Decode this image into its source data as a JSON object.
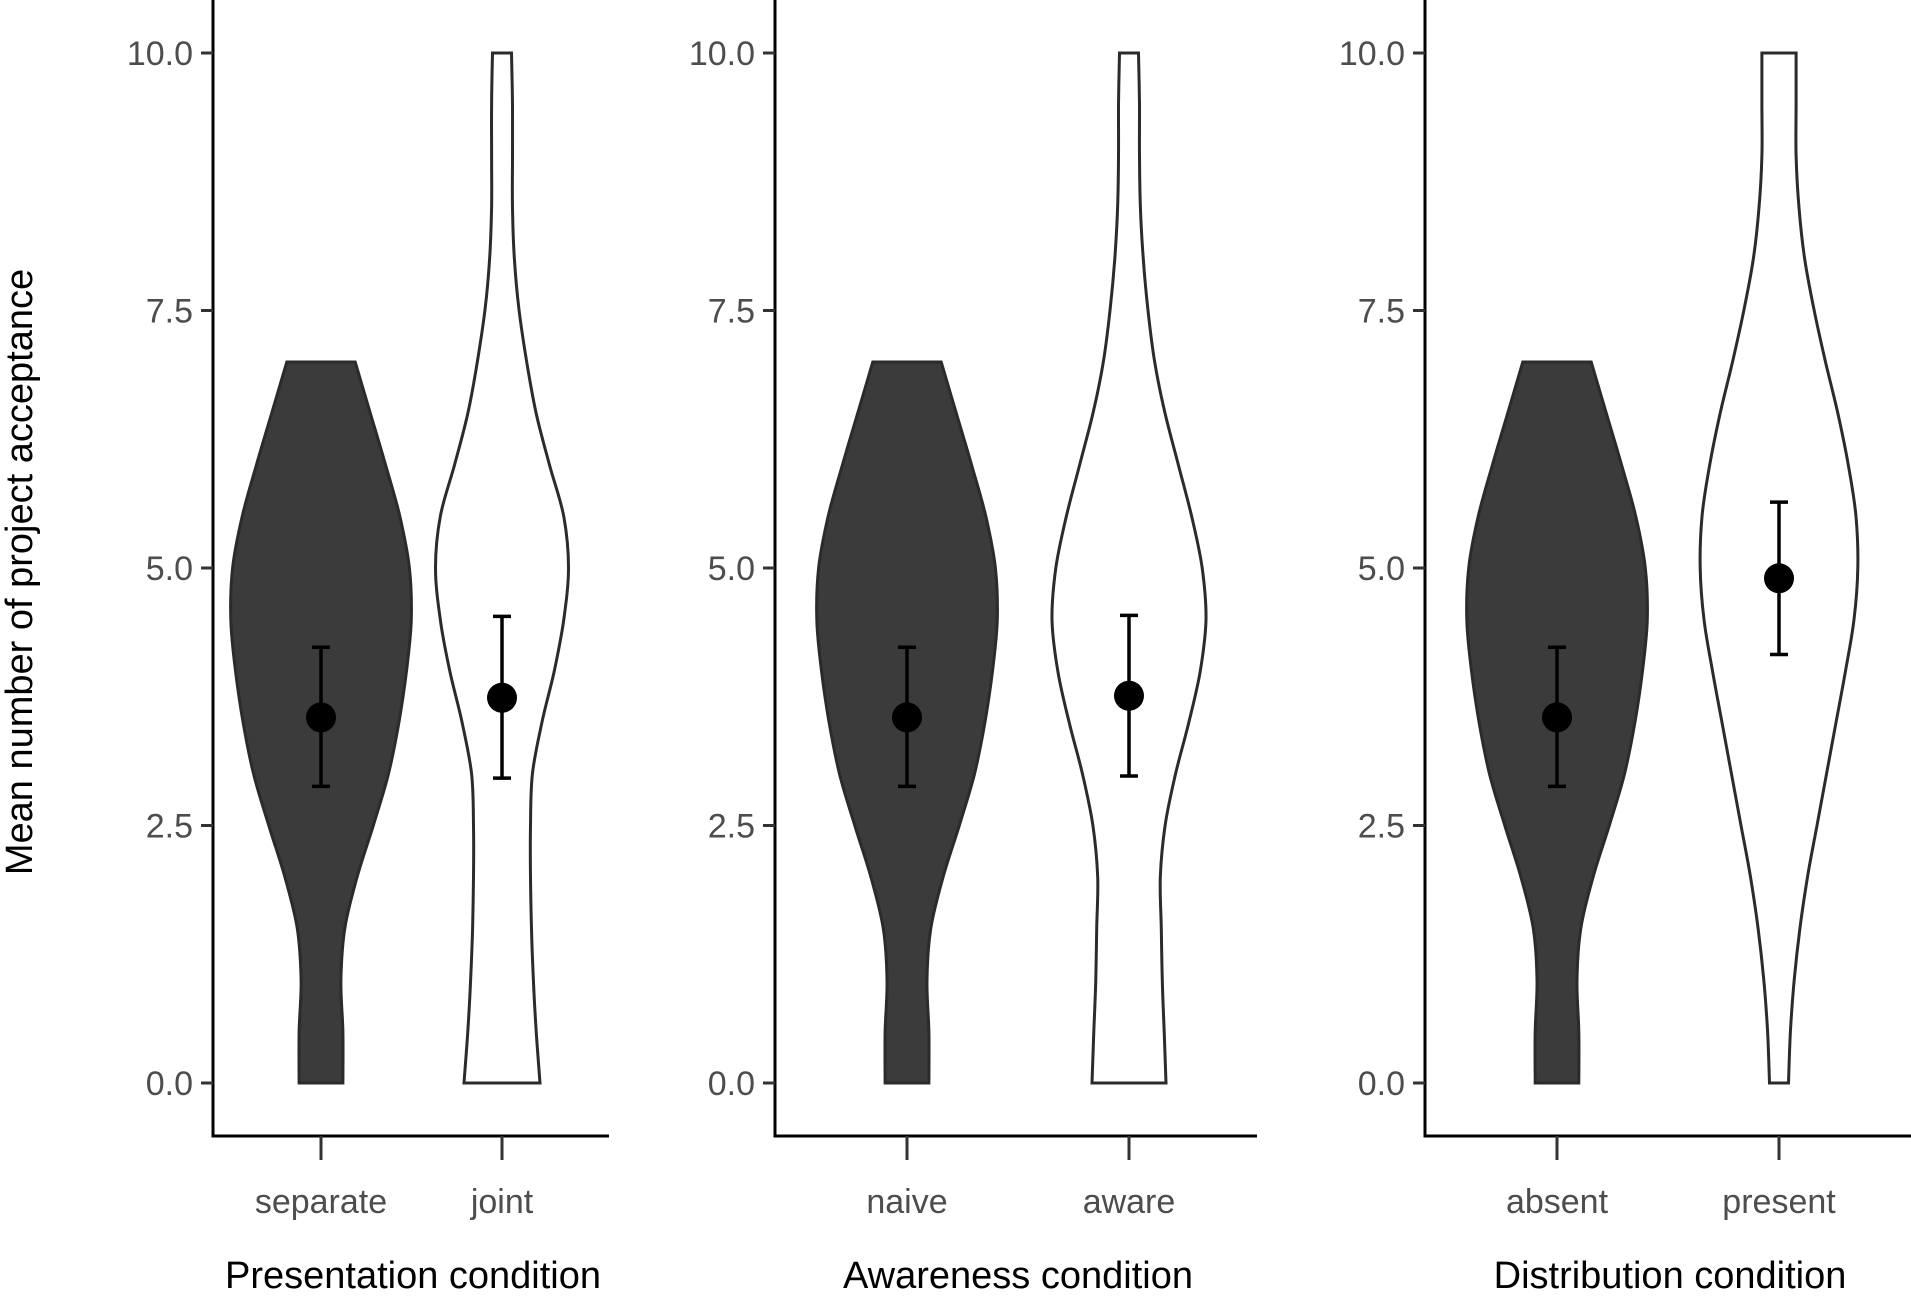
{
  "ylabel": "Mean number of project acceptance",
  "colors": {
    "filled": "#3b3b3b",
    "open": "#ffffff",
    "outline": "#2b2b2b",
    "point": "#000000"
  },
  "chart_data": [
    {
      "type": "violin",
      "xlabel": "Presentation condition",
      "ylim": [
        0,
        10
      ],
      "yticks": [
        "0.0",
        "2.5",
        "5.0",
        "7.5",
        "10.0"
      ],
      "ytick_values": [
        0,
        2.5,
        5,
        7.5,
        10
      ],
      "categories": [
        "separate",
        "joint"
      ],
      "groups": [
        {
          "category": "separate",
          "fill": "dark",
          "mean": 3.55,
          "ci_low": 2.88,
          "ci_high": 4.23,
          "density": [
            [
              0,
              0.23
            ],
            [
              0.5,
              0.23
            ],
            [
              1.0,
              0.21
            ],
            [
              1.5,
              0.25
            ],
            [
              2.0,
              0.38
            ],
            [
              2.5,
              0.55
            ],
            [
              3.0,
              0.71
            ],
            [
              3.5,
              0.82
            ],
            [
              4.0,
              0.9
            ],
            [
              4.5,
              0.95
            ],
            [
              5.0,
              0.93
            ],
            [
              5.5,
              0.83
            ],
            [
              6.0,
              0.68
            ],
            [
              6.5,
              0.52
            ],
            [
              7.0,
              0.36
            ]
          ]
        },
        {
          "category": "joint",
          "fill": "open",
          "mean": 3.74,
          "ci_low": 2.96,
          "ci_high": 4.53,
          "density": [
            [
              0,
              0.4
            ],
            [
              0.5,
              0.36
            ],
            [
              1.0,
              0.33
            ],
            [
              1.5,
              0.31
            ],
            [
              2.0,
              0.3
            ],
            [
              2.5,
              0.3
            ],
            [
              3.0,
              0.32
            ],
            [
              3.5,
              0.42
            ],
            [
              4.0,
              0.55
            ],
            [
              4.5,
              0.65
            ],
            [
              5.0,
              0.7
            ],
            [
              5.5,
              0.65
            ],
            [
              6.0,
              0.5
            ],
            [
              6.5,
              0.36
            ],
            [
              7.0,
              0.26
            ],
            [
              7.5,
              0.18
            ],
            [
              8.0,
              0.13
            ],
            [
              8.5,
              0.11
            ],
            [
              9.0,
              0.11
            ],
            [
              9.5,
              0.11
            ],
            [
              10.0,
              0.1
            ]
          ]
        }
      ]
    },
    {
      "type": "violin",
      "xlabel": "Awareness condition",
      "ylim": [
        0,
        10
      ],
      "yticks": [
        "0.0",
        "2.5",
        "5.0",
        "7.5",
        "10.0"
      ],
      "ytick_values": [
        0,
        2.5,
        5,
        7.5,
        10
      ],
      "categories": [
        "naive",
        "aware"
      ],
      "groups": [
        {
          "category": "naive",
          "fill": "dark",
          "mean": 3.55,
          "ci_low": 2.88,
          "ci_high": 4.23,
          "density": [
            [
              0,
              0.23
            ],
            [
              0.5,
              0.23
            ],
            [
              1.0,
              0.21
            ],
            [
              1.5,
              0.25
            ],
            [
              2.0,
              0.38
            ],
            [
              2.5,
              0.55
            ],
            [
              3.0,
              0.71
            ],
            [
              3.5,
              0.82
            ],
            [
              4.0,
              0.9
            ],
            [
              4.5,
              0.95
            ],
            [
              5.0,
              0.93
            ],
            [
              5.5,
              0.83
            ],
            [
              6.0,
              0.68
            ],
            [
              6.5,
              0.52
            ],
            [
              7.0,
              0.36
            ]
          ]
        },
        {
          "category": "aware",
          "fill": "open",
          "mean": 3.76,
          "ci_low": 2.98,
          "ci_high": 4.54,
          "density": [
            [
              0,
              0.39
            ],
            [
              0.5,
              0.37
            ],
            [
              1.0,
              0.35
            ],
            [
              1.5,
              0.34
            ],
            [
              2.0,
              0.33
            ],
            [
              2.5,
              0.38
            ],
            [
              3.0,
              0.49
            ],
            [
              3.5,
              0.63
            ],
            [
              4.0,
              0.75
            ],
            [
              4.5,
              0.81
            ],
            [
              5.0,
              0.77
            ],
            [
              5.5,
              0.66
            ],
            [
              6.0,
              0.52
            ],
            [
              6.5,
              0.38
            ],
            [
              7.0,
              0.27
            ],
            [
              7.5,
              0.2
            ],
            [
              8.0,
              0.15
            ],
            [
              8.5,
              0.12
            ],
            [
              9.0,
              0.11
            ],
            [
              9.5,
              0.11
            ],
            [
              10.0,
              0.1
            ]
          ]
        }
      ]
    },
    {
      "type": "violin",
      "xlabel": "Distribution condition",
      "ylim": [
        0,
        10
      ],
      "yticks": [
        "0.0",
        "2.5",
        "5.0",
        "7.5",
        "10.0"
      ],
      "ytick_values": [
        0,
        2.5,
        5,
        7.5,
        10
      ],
      "categories": [
        "absent",
        "present"
      ],
      "groups": [
        {
          "category": "absent",
          "fill": "dark",
          "mean": 3.55,
          "ci_low": 2.88,
          "ci_high": 4.23,
          "density": [
            [
              0,
              0.23
            ],
            [
              0.5,
              0.23
            ],
            [
              1.0,
              0.21
            ],
            [
              1.5,
              0.25
            ],
            [
              2.0,
              0.38
            ],
            [
              2.5,
              0.55
            ],
            [
              3.0,
              0.71
            ],
            [
              3.5,
              0.82
            ],
            [
              4.0,
              0.9
            ],
            [
              4.5,
              0.95
            ],
            [
              5.0,
              0.93
            ],
            [
              5.5,
              0.83
            ],
            [
              6.0,
              0.68
            ],
            [
              6.5,
              0.52
            ],
            [
              7.0,
              0.36
            ]
          ]
        },
        {
          "category": "present",
          "fill": "open",
          "mean": 4.9,
          "ci_low": 4.16,
          "ci_high": 5.64,
          "density": [
            [
              0,
              0.1
            ],
            [
              0.5,
              0.12
            ],
            [
              1.0,
              0.16
            ],
            [
              1.5,
              0.22
            ],
            [
              2.0,
              0.3
            ],
            [
              2.5,
              0.4
            ],
            [
              3.0,
              0.5
            ],
            [
              3.5,
              0.6
            ],
            [
              4.0,
              0.7
            ],
            [
              4.5,
              0.79
            ],
            [
              5.0,
              0.83
            ],
            [
              5.5,
              0.81
            ],
            [
              6.0,
              0.73
            ],
            [
              6.5,
              0.62
            ],
            [
              7.0,
              0.49
            ],
            [
              7.5,
              0.37
            ],
            [
              8.0,
              0.27
            ],
            [
              8.5,
              0.21
            ],
            [
              9.0,
              0.18
            ],
            [
              9.5,
              0.18
            ],
            [
              10.0,
              0.18
            ]
          ]
        }
      ]
    }
  ]
}
